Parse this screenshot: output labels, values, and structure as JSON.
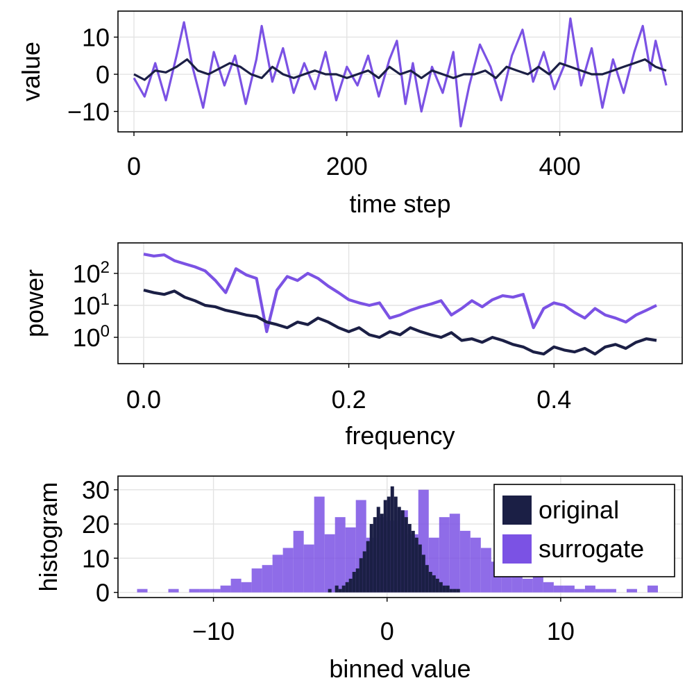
{
  "colors": {
    "original": "#1b1f45",
    "surrogate": "#7b52e4"
  },
  "chart_data": [
    {
      "type": "line",
      "xlabel": "time step",
      "ylabel": "value",
      "xlim": [
        -15,
        515
      ],
      "ylim": [
        -15.5,
        17
      ],
      "xticks": [
        0,
        200,
        400
      ],
      "xtick_labels": [
        "0",
        "200",
        "400"
      ],
      "yticks": [
        -10,
        0,
        10
      ],
      "ytick_labels": [
        "−10",
        "0",
        "10"
      ],
      "series": [
        {
          "name": "original",
          "color": "#1b1f45",
          "x": [
            0,
            10,
            20,
            30,
            40,
            50,
            60,
            70,
            80,
            90,
            100,
            110,
            120,
            130,
            140,
            150,
            160,
            170,
            180,
            190,
            200,
            210,
            220,
            230,
            240,
            250,
            260,
            270,
            280,
            290,
            300,
            310,
            320,
            330,
            340,
            350,
            360,
            370,
            380,
            390,
            400,
            410,
            420,
            430,
            440,
            450,
            460,
            470,
            480,
            490,
            500
          ],
          "y": [
            0,
            -1.5,
            1,
            0.5,
            2,
            4,
            1,
            0,
            1.5,
            3,
            2,
            0,
            -1,
            2,
            0,
            -1,
            0,
            1,
            0,
            0,
            -1,
            0,
            1,
            -1,
            2,
            0,
            1,
            -1,
            1,
            0,
            -1,
            0,
            0,
            1,
            -1,
            2,
            1,
            0,
            2,
            0,
            3,
            2,
            1,
            0,
            0,
            1,
            2,
            3,
            4,
            2,
            1
          ]
        },
        {
          "name": "surrogate",
          "color": "#7b52e4",
          "x": [
            0,
            10,
            20,
            30,
            40,
            47,
            55,
            65,
            75,
            85,
            95,
            105,
            115,
            120,
            130,
            140,
            150,
            160,
            170,
            180,
            190,
            200,
            210,
            220,
            230,
            240,
            247,
            255,
            262,
            270,
            280,
            290,
            300,
            307,
            315,
            325,
            335,
            345,
            355,
            365,
            375,
            385,
            395,
            405,
            410,
            420,
            430,
            440,
            450,
            460,
            470,
            478,
            485,
            490,
            500
          ],
          "y": [
            -1,
            -6,
            3,
            -7,
            5,
            14,
            2,
            -9,
            6,
            -3,
            5,
            -8,
            4,
            13,
            -2,
            7,
            -5,
            3,
            -4,
            6,
            -7,
            2,
            -3,
            5,
            -6,
            4,
            9,
            -8,
            3,
            -10,
            2,
            -5,
            6,
            -14,
            -3,
            8,
            2,
            -7,
            5,
            12,
            -2,
            6,
            -4,
            3,
            15,
            -3,
            7,
            -9,
            4,
            -5,
            6,
            13,
            1,
            9,
            -3
          ]
        }
      ]
    },
    {
      "type": "line",
      "xlabel": "frequency",
      "ylabel": "power",
      "yscale": "log",
      "xlim": [
        -0.025,
        0.525
      ],
      "ylim": [
        0.15,
        900
      ],
      "xticks": [
        0.0,
        0.2,
        0.4
      ],
      "xtick_labels": [
        "0.0",
        "0.2",
        "0.4"
      ],
      "yticks": [
        1,
        10,
        100
      ],
      "ytick_bases": [
        "10",
        "10",
        "10"
      ],
      "ytick_exps": [
        "0",
        "1",
        "2"
      ],
      "series": [
        {
          "name": "original",
          "color": "#1b1f45",
          "x": [
            0,
            0.01,
            0.02,
            0.03,
            0.04,
            0.05,
            0.06,
            0.07,
            0.08,
            0.09,
            0.1,
            0.11,
            0.12,
            0.13,
            0.14,
            0.15,
            0.16,
            0.17,
            0.18,
            0.19,
            0.2,
            0.21,
            0.22,
            0.23,
            0.24,
            0.25,
            0.26,
            0.27,
            0.28,
            0.29,
            0.3,
            0.31,
            0.32,
            0.33,
            0.34,
            0.35,
            0.36,
            0.37,
            0.38,
            0.39,
            0.4,
            0.41,
            0.42,
            0.43,
            0.44,
            0.45,
            0.46,
            0.47,
            0.48,
            0.49,
            0.5
          ],
          "y": [
            30,
            25,
            22,
            28,
            18,
            14,
            10,
            9,
            7,
            6,
            5,
            4.5,
            3,
            2.5,
            2,
            3,
            2.5,
            4,
            3,
            2,
            1.5,
            2,
            1.2,
            1,
            1.5,
            1.2,
            2,
            1.5,
            1.2,
            1,
            1.4,
            0.8,
            0.9,
            0.7,
            1,
            0.8,
            0.6,
            0.5,
            0.35,
            0.3,
            0.5,
            0.4,
            0.35,
            0.45,
            0.3,
            0.5,
            0.6,
            0.45,
            0.7,
            0.9,
            0.8
          ]
        },
        {
          "name": "surrogate",
          "color": "#7b52e4",
          "x": [
            0,
            0.01,
            0.02,
            0.03,
            0.04,
            0.05,
            0.06,
            0.07,
            0.08,
            0.09,
            0.1,
            0.11,
            0.12,
            0.13,
            0.14,
            0.15,
            0.16,
            0.17,
            0.18,
            0.19,
            0.2,
            0.21,
            0.22,
            0.23,
            0.24,
            0.25,
            0.26,
            0.27,
            0.28,
            0.29,
            0.3,
            0.31,
            0.32,
            0.33,
            0.34,
            0.35,
            0.36,
            0.37,
            0.38,
            0.39,
            0.4,
            0.41,
            0.42,
            0.43,
            0.44,
            0.45,
            0.46,
            0.47,
            0.48,
            0.49,
            0.5
          ],
          "y": [
            400,
            350,
            380,
            250,
            200,
            160,
            120,
            60,
            25,
            140,
            90,
            70,
            1.5,
            30,
            80,
            60,
            100,
            70,
            40,
            25,
            15,
            12,
            10,
            12,
            4,
            5,
            7,
            9,
            11,
            14,
            5,
            8,
            14,
            9,
            15,
            20,
            18,
            22,
            2,
            8,
            12,
            10,
            6,
            4,
            8,
            5,
            4,
            3,
            5,
            7,
            10
          ]
        }
      ]
    },
    {
      "type": "histogram",
      "xlabel": "binned value",
      "ylabel": "histogram",
      "xlim": [
        -15.5,
        17
      ],
      "ylim": [
        -1.5,
        34
      ],
      "xticks": [
        -10,
        0,
        10
      ],
      "xtick_labels": [
        "−10",
        "0",
        "10"
      ],
      "yticks": [
        0,
        10,
        20,
        30
      ],
      "ytick_labels": [
        "0",
        "10",
        "20",
        "30"
      ],
      "legend": {
        "position": "top-right",
        "entries": [
          "original",
          "surrogate"
        ]
      },
      "series": [
        {
          "name": "surrogate",
          "color": "#7b52e4",
          "opacity": 0.85,
          "bin_width": 0.6,
          "bin_centers": [
            -14.1,
            -13.5,
            -12.9,
            -12.3,
            -11.7,
            -11.1,
            -10.5,
            -9.9,
            -9.3,
            -8.7,
            -8.1,
            -7.5,
            -6.9,
            -6.3,
            -5.7,
            -5.1,
            -4.5,
            -3.9,
            -3.3,
            -2.7,
            -2.1,
            -1.5,
            -0.9,
            -0.3,
            0.3,
            0.9,
            1.5,
            2.1,
            2.7,
            3.3,
            3.9,
            4.5,
            5.1,
            5.7,
            6.3,
            6.9,
            7.5,
            8.1,
            8.7,
            9.3,
            9.9,
            10.5,
            11.1,
            11.7,
            12.3,
            12.9,
            13.5,
            14.1,
            14.7,
            15.3
          ],
          "counts": [
            1,
            0,
            0,
            1,
            0,
            1,
            1,
            1,
            2,
            4,
            3,
            7,
            8,
            11,
            13,
            18,
            14,
            28,
            17,
            22,
            19,
            27,
            16,
            22,
            21,
            24,
            17,
            30,
            16,
            22,
            23,
            18,
            16,
            13,
            9,
            10,
            7,
            4,
            5,
            3,
            2,
            2,
            1,
            2,
            1,
            1,
            0,
            1,
            0,
            2
          ]
        },
        {
          "name": "original",
          "color": "#1b1f45",
          "opacity": 1,
          "bin_width": 0.2,
          "bin_centers": [
            -3.5,
            -3.3,
            -3.1,
            -2.9,
            -2.7,
            -2.5,
            -2.3,
            -2.1,
            -1.9,
            -1.7,
            -1.5,
            -1.3,
            -1.1,
            -0.9,
            -0.7,
            -0.5,
            -0.3,
            -0.1,
            0.1,
            0.3,
            0.5,
            0.7,
            0.9,
            1.1,
            1.3,
            1.5,
            1.7,
            1.9,
            2.1,
            2.3,
            2.5,
            2.7,
            2.9,
            3.1,
            3.3,
            3.5,
            3.7,
            3.9,
            4.1,
            4.3
          ],
          "counts": [
            0,
            1,
            0,
            2,
            1,
            2,
            3,
            4,
            6,
            7,
            10,
            12,
            15,
            20,
            22,
            25,
            23,
            27,
            28,
            31,
            28,
            25,
            24,
            22,
            20,
            18,
            16,
            14,
            11,
            8,
            6,
            5,
            4,
            3,
            2,
            2,
            1,
            1,
            1,
            0
          ]
        }
      ]
    }
  ]
}
